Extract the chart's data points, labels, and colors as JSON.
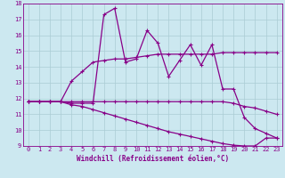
{
  "xlabel": "Windchill (Refroidissement éolien,°C)",
  "xlim": [
    -0.5,
    23.5
  ],
  "ylim": [
    9,
    18
  ],
  "yticks": [
    9,
    10,
    11,
    12,
    13,
    14,
    15,
    16,
    17,
    18
  ],
  "xticks": [
    0,
    1,
    2,
    3,
    4,
    5,
    6,
    7,
    8,
    9,
    10,
    11,
    12,
    13,
    14,
    15,
    16,
    17,
    18,
    19,
    20,
    21,
    22,
    23
  ],
  "background_color": "#cce8f0",
  "line_color": "#880088",
  "grid_color": "#aaccd4",
  "lines": [
    [
      11.8,
      11.8,
      11.8,
      11.8,
      11.7,
      11.7,
      11.7,
      17.3,
      17.7,
      14.3,
      14.5,
      16.3,
      15.5,
      13.4,
      14.4,
      15.4,
      14.1,
      15.4,
      12.6,
      12.6,
      10.8,
      10.1,
      9.8,
      9.5
    ],
    [
      11.8,
      11.8,
      11.8,
      11.8,
      13.1,
      13.7,
      14.3,
      14.4,
      14.5,
      14.5,
      14.6,
      14.7,
      14.8,
      14.8,
      14.8,
      14.8,
      14.8,
      14.8,
      14.9,
      14.9,
      14.9,
      14.9,
      14.9,
      14.9
    ],
    [
      11.8,
      11.8,
      11.8,
      11.8,
      11.8,
      11.8,
      11.8,
      11.8,
      11.8,
      11.8,
      11.8,
      11.8,
      11.8,
      11.8,
      11.8,
      11.8,
      11.8,
      11.8,
      11.8,
      11.7,
      11.5,
      11.4,
      11.2,
      11.0
    ],
    [
      11.8,
      11.8,
      11.8,
      11.8,
      11.6,
      11.5,
      11.3,
      11.1,
      10.9,
      10.7,
      10.5,
      10.3,
      10.1,
      9.9,
      9.75,
      9.6,
      9.45,
      9.3,
      9.15,
      9.05,
      9.0,
      9.0,
      9.5,
      9.5
    ]
  ]
}
